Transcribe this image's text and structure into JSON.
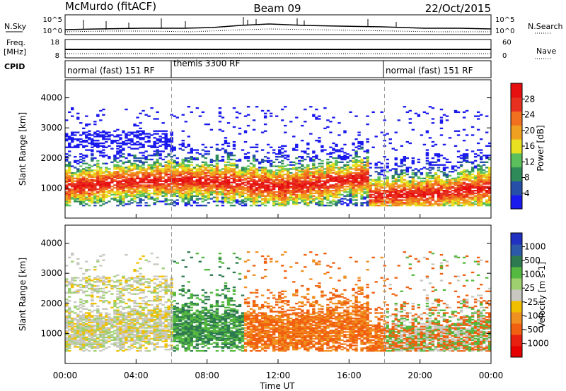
{
  "header": {
    "station": "McMurdo (fitACF)",
    "beam": "Beam 09",
    "date": "22/Oct/2015"
  },
  "side_labels": {
    "nsky": "N.Sky",
    "freq_line1": "Freq.",
    "freq_line2": "[MHz]",
    "cpid": "CPID",
    "nsearch": "N.Search",
    "nave": "Nave",
    "nsky_ticks": [
      "10^5",
      "10^0"
    ],
    "nsearch_ticks": [
      "10^5",
      "10^0"
    ],
    "freq_ticks": [
      "18",
      "8"
    ],
    "nave_ticks": [
      "60",
      "0"
    ]
  },
  "cpid_segments": [
    {
      "label": "normal (fast) 151 RF",
      "start_hour": 0,
      "end_hour": 6
    },
    {
      "label": "themis 3300 RF",
      "start_hour": 6,
      "end_hour": 18
    },
    {
      "label": "normal (fast) 151 RF",
      "start_hour": 18,
      "end_hour": 24
    }
  ],
  "colors": {
    "power": [
      "#1a1aee",
      "#2650a8",
      "#2f8a5a",
      "#5bbf5b",
      "#e8e020",
      "#f0a020",
      "#f07020",
      "#e83020",
      "#e61010"
    ],
    "velocity": [
      "#2030c0",
      "#2c5aa8",
      "#2e7a50",
      "#55b840",
      "#9ed070",
      "#c8c8c0",
      "#f0c000",
      "#f09020",
      "#f06010",
      "#e82010",
      "#e60000"
    ]
  },
  "chart_data": [
    {
      "type": "heatmap",
      "name": "power",
      "ylabel": "Slant Range [km]",
      "xlabel": "",
      "xlim": [
        0,
        24
      ],
      "ylim": [
        0,
        4600
      ],
      "yticks": [
        "1000",
        "2000",
        "3000",
        "4000"
      ],
      "colorbar": {
        "label": "Power [dB]",
        "ticks": [
          "4",
          "8",
          "12",
          "16",
          "20",
          "24",
          "28"
        ],
        "range": [
          0,
          32
        ]
      }
    },
    {
      "type": "heatmap",
      "name": "velocity",
      "ylabel": "Slant Range [km]",
      "xlabel": "Time UT",
      "xlim": [
        0,
        24
      ],
      "ylim": [
        0,
        4600
      ],
      "yticks": [
        "1000",
        "2000",
        "3000",
        "4000"
      ],
      "xticks": [
        "00:00",
        "04:00",
        "08:00",
        "12:00",
        "16:00",
        "20:00",
        "00:00"
      ],
      "colorbar": {
        "label": "Velocity [m s-1]",
        "ticks": [
          "1000",
          "500",
          "100",
          "25",
          "-25",
          "-100",
          "-500",
          "-1000"
        ]
      }
    }
  ]
}
